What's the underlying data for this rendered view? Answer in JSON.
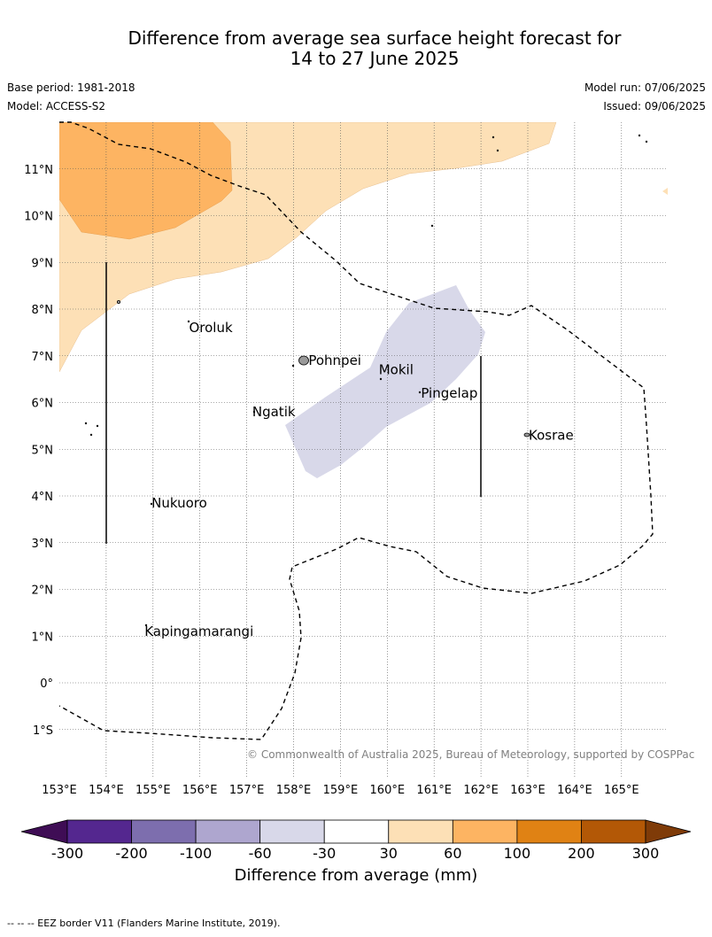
{
  "title_line1": "Difference from average sea surface height forecast for",
  "title_line2": "14 to 27 June 2025",
  "base_period": "Base period: 1981-2018",
  "model": "Model: ACCESS-S2",
  "model_run": "Model run: 07/06/2025",
  "issued": "Issued: 09/06/2025",
  "copyright": "© Commonwealth of Australia 2025, Bureau of Meteorology, supported by COSPPac",
  "axis": {
    "lon_labels": [
      "153°E",
      "154°E",
      "155°E",
      "156°E",
      "157°E",
      "158°E",
      "159°E",
      "160°E",
      "161°E",
      "162°E",
      "163°E",
      "164°E",
      "165°E"
    ],
    "lat_labels": [
      "11°N",
      "10°N",
      "9°N",
      "8°N",
      "7°N",
      "6°N",
      "5°N",
      "4°N",
      "3°N",
      "2°N",
      "1°N",
      "0°",
      "1°S"
    ]
  },
  "places": [
    {
      "name": "Oroluk",
      "lon": 155.75,
      "lat": 7.6
    },
    {
      "name": "Pohnpei",
      "lon": 158.3,
      "lat": 6.9
    },
    {
      "name": "Mokil",
      "lon": 159.8,
      "lat": 6.7
    },
    {
      "name": "Pingelap",
      "lon": 160.7,
      "lat": 6.2
    },
    {
      "name": "Ngatik",
      "lon": 157.1,
      "lat": 5.8
    },
    {
      "name": "Kosrae",
      "lon": 163.0,
      "lat": 5.3
    },
    {
      "name": "Nukuoro",
      "lon": 154.95,
      "lat": 3.85
    },
    {
      "name": "Kapingamarangi",
      "lon": 154.8,
      "lat": 1.1
    }
  ],
  "legend": {
    "title": "Difference from average (mm)",
    "tick_labels": [
      "-300",
      "-200",
      "-100",
      "-60",
      "-30",
      "30",
      "60",
      "100",
      "200",
      "300"
    ],
    "colors": [
      "#3f0d55",
      "#54278f",
      "#7d6eae",
      "#aea6cf",
      "#d8d8e9",
      "#ffffff",
      "#fde0b6",
      "#fdb462",
      "#e08214",
      "#b35806",
      "#7f3b08"
    ]
  },
  "footer": "--  --  -- EEZ border V11 (Flanders Marine Institute, 2019)."
}
